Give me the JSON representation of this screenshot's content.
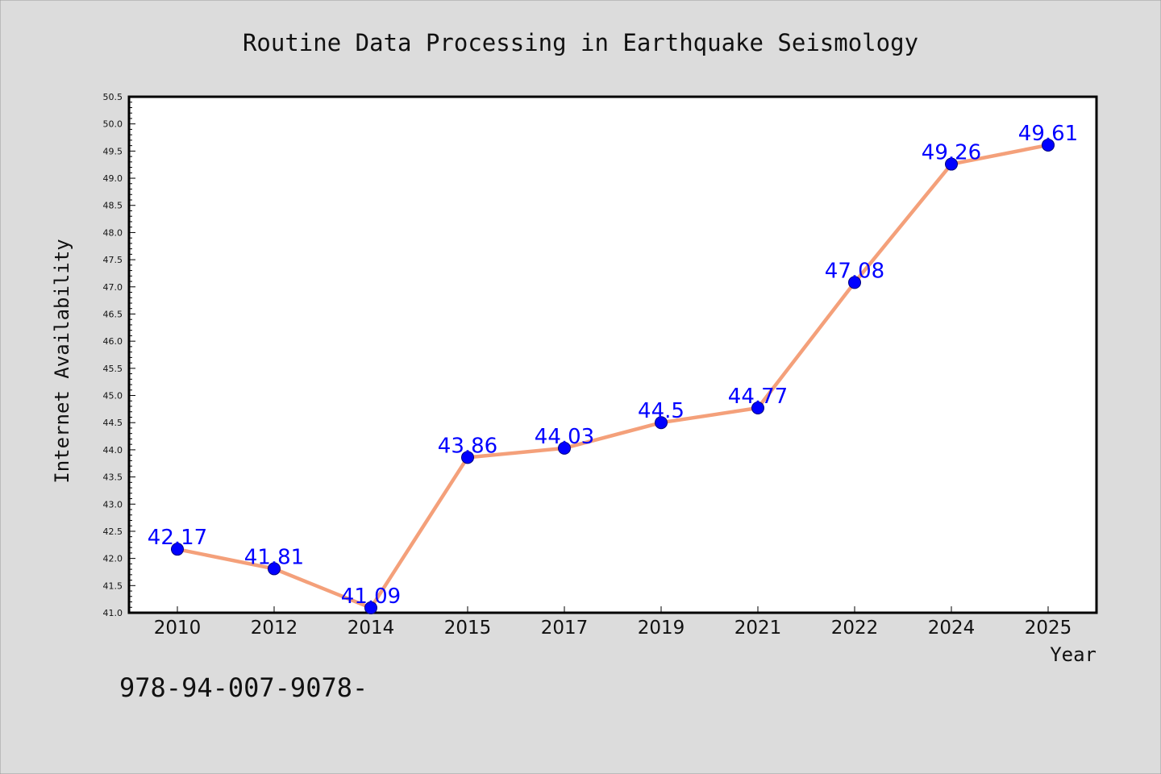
{
  "chart_data": {
    "type": "line",
    "title": "Routine Data Processing in Earthquake Seismology",
    "xlabel": "Year",
    "ylabel": "Internet Availability",
    "categories": [
      "2010",
      "2012",
      "2014",
      "2015",
      "2017",
      "2019",
      "2021",
      "2022",
      "2024",
      "2025"
    ],
    "values": [
      42.17,
      41.81,
      41.09,
      43.86,
      44.03,
      44.5,
      44.77,
      47.08,
      49.26,
      49.61
    ],
    "data_labels": [
      "42.17",
      "41.81",
      "41.09",
      "43.86",
      "44.03",
      "44.5",
      "44.77",
      "47.08",
      "49.26",
      "49.61"
    ],
    "ylim": [
      41.0,
      50.5
    ],
    "yticks": [
      "41.0",
      "41.5",
      "42.0",
      "42.5",
      "43.0",
      "43.5",
      "44.0",
      "44.5",
      "45.0",
      "45.5",
      "46.0",
      "46.5",
      "47.0",
      "47.5",
      "48.0",
      "48.5",
      "49.0",
      "49.5",
      "50.0",
      "50.5"
    ],
    "grid": false,
    "legend": "none",
    "colors": {
      "line": "#f4a07a",
      "marker": "#0000ff",
      "marker_edge": "#000080",
      "data_label": "#0000ff",
      "background": "#dcdcdc",
      "plot_background": "#ffffff"
    }
  },
  "footer": {
    "text": "978-94-007-9078-"
  }
}
